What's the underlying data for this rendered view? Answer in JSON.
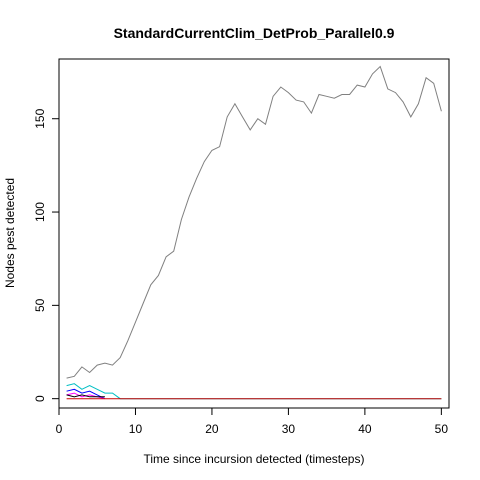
{
  "chart_data": {
    "type": "line",
    "title": "StandardCurrentClim_DetProb_Parallel0.9",
    "xlabel": "Time since incursion detected (timesteps)",
    "ylabel": "Nodes pest detected",
    "xlim": [
      0,
      51
    ],
    "ylim": [
      -5,
      182
    ],
    "xticks": [
      0,
      10,
      20,
      30,
      40,
      50
    ],
    "yticks": [
      0,
      50,
      100,
      150
    ],
    "grid": false,
    "series": [
      {
        "color": "#808080",
        "x": [
          1,
          2,
          3,
          4,
          5,
          6,
          7,
          8,
          9,
          10,
          11,
          12,
          13,
          14,
          15,
          16,
          17,
          18,
          19,
          20,
          21,
          22,
          23,
          24,
          25,
          26,
          27,
          28,
          29,
          30,
          31,
          32,
          33,
          34,
          35,
          36,
          37,
          38,
          39,
          40,
          41,
          42,
          43,
          44,
          45,
          46,
          47,
          48,
          49,
          50
        ],
        "y": [
          11,
          12,
          17,
          14,
          18,
          19,
          18,
          22,
          31,
          41,
          51,
          61,
          66,
          76,
          79,
          96,
          108,
          118,
          127,
          133,
          135,
          151,
          158,
          151,
          144,
          150,
          147,
          162,
          167,
          164,
          160,
          159,
          153,
          163,
          162,
          161,
          163,
          163,
          168,
          167,
          174,
          178,
          166,
          164,
          159,
          151,
          158,
          172,
          169,
          154
        ]
      },
      {
        "color": "#00BFC4",
        "x": [
          1,
          2,
          3,
          4,
          5,
          6,
          7,
          8,
          9,
          10,
          20,
          30,
          40,
          50
        ],
        "y": [
          7,
          8,
          5,
          7,
          5,
          3,
          3,
          0,
          0,
          0,
          0,
          0,
          0,
          0
        ]
      },
      {
        "color": "#0000FF",
        "x": [
          1,
          2,
          3,
          4,
          5,
          6
        ],
        "y": [
          4,
          5,
          3,
          4,
          2,
          0
        ]
      },
      {
        "color": "#FF00FF",
        "x": [
          1,
          2,
          3,
          4,
          5,
          6
        ],
        "y": [
          2,
          3,
          1,
          2,
          1,
          0
        ]
      },
      {
        "color": "#000000",
        "x": [
          1,
          2,
          3,
          4,
          5,
          6
        ],
        "y": [
          2,
          1,
          2,
          1,
          1,
          1
        ]
      },
      {
        "color": "#CC0000",
        "x": [
          1,
          50
        ],
        "y": [
          0,
          0
        ]
      }
    ]
  }
}
